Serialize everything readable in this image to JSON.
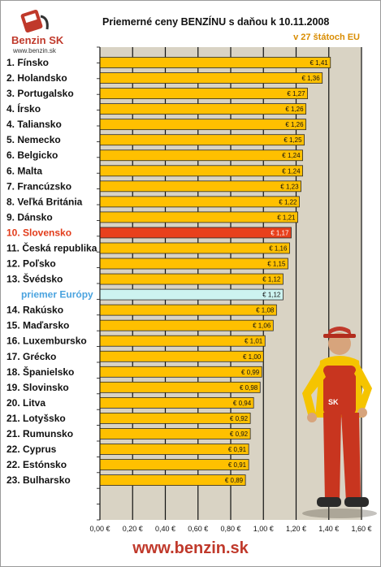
{
  "header": {
    "title": "Priemerné ceny BENZÍNU s daňou k 10.11.2008",
    "subtitle": "v 27 štátoch EU",
    "logo_text": "Benzin SK",
    "logo_url": "www.benzin.sk"
  },
  "footer": {
    "url": "www.benzin.sk"
  },
  "colors": {
    "plot_bg": "#d9d3c4",
    "bar": "#ffc000",
    "bar_highlight": "#e8401c",
    "bar_average": "#cdf3f0",
    "grid": "#111111"
  },
  "chart_data": {
    "type": "bar",
    "orientation": "horizontal",
    "categories": [
      "1. Fínsko",
      "2. Holandsko",
      "3. Portugalsko",
      "4. Írsko",
      "4. Taliansko",
      "5. Nemecko",
      "6. Belgicko",
      "6. Malta",
      "7. Francúzsko",
      "8. Veľká Británia",
      "9. Dánsko",
      "10. Slovensko",
      "11. Česká republika",
      "12. Poľsko",
      "13. Švédsko",
      "priemer Európy",
      "14. Rakúsko",
      "15. Maďarsko",
      "16. Luxembursko",
      "17. Grécko",
      "18. Španielsko",
      "19. Slovinsko",
      "20. Litva",
      "21. Lotyšsko",
      "21. Rumunsko",
      "22. Cyprus",
      "22. Estónsko",
      "23. Bulharsko"
    ],
    "values": [
      1.41,
      1.36,
      1.27,
      1.26,
      1.26,
      1.25,
      1.24,
      1.24,
      1.23,
      1.22,
      1.21,
      1.17,
      1.16,
      1.15,
      1.12,
      1.12,
      1.08,
      1.06,
      1.01,
      1.0,
      0.99,
      0.98,
      0.94,
      0.92,
      0.92,
      0.91,
      0.91,
      0.89
    ],
    "value_labels": [
      "€ 1,41",
      "€ 1,36",
      "€ 1,27",
      "€ 1,26",
      "€ 1,26",
      "€ 1,25",
      "€ 1,24",
      "€ 1,24",
      "€ 1,23",
      "€ 1,22",
      "€ 1,21",
      "€ 1,17",
      "€ 1,16",
      "€ 1,15",
      "€ 1,12",
      "€ 1,12",
      "€ 1,08",
      "€ 1,06",
      "€ 1,01",
      "€ 1,00",
      "€ 0,99",
      "€ 0,98",
      "€ 0,94",
      "€ 0,92",
      "€ 0,92",
      "€ 0,91",
      "€ 0,91",
      "€ 0,89"
    ],
    "highlight_category": "10. Slovensko",
    "average_category": "priemer Európy",
    "xlim": [
      0,
      1.6
    ],
    "xticks": [
      0,
      0.2,
      0.4,
      0.6,
      0.8,
      1.0,
      1.2,
      1.4,
      1.6
    ],
    "xtick_labels": [
      "0,00 €",
      "0,20 €",
      "0,40 €",
      "0,60 €",
      "0,80 €",
      "1,00 €",
      "1,20 €",
      "1,40 €",
      "1,60 €"
    ],
    "grid": true
  }
}
